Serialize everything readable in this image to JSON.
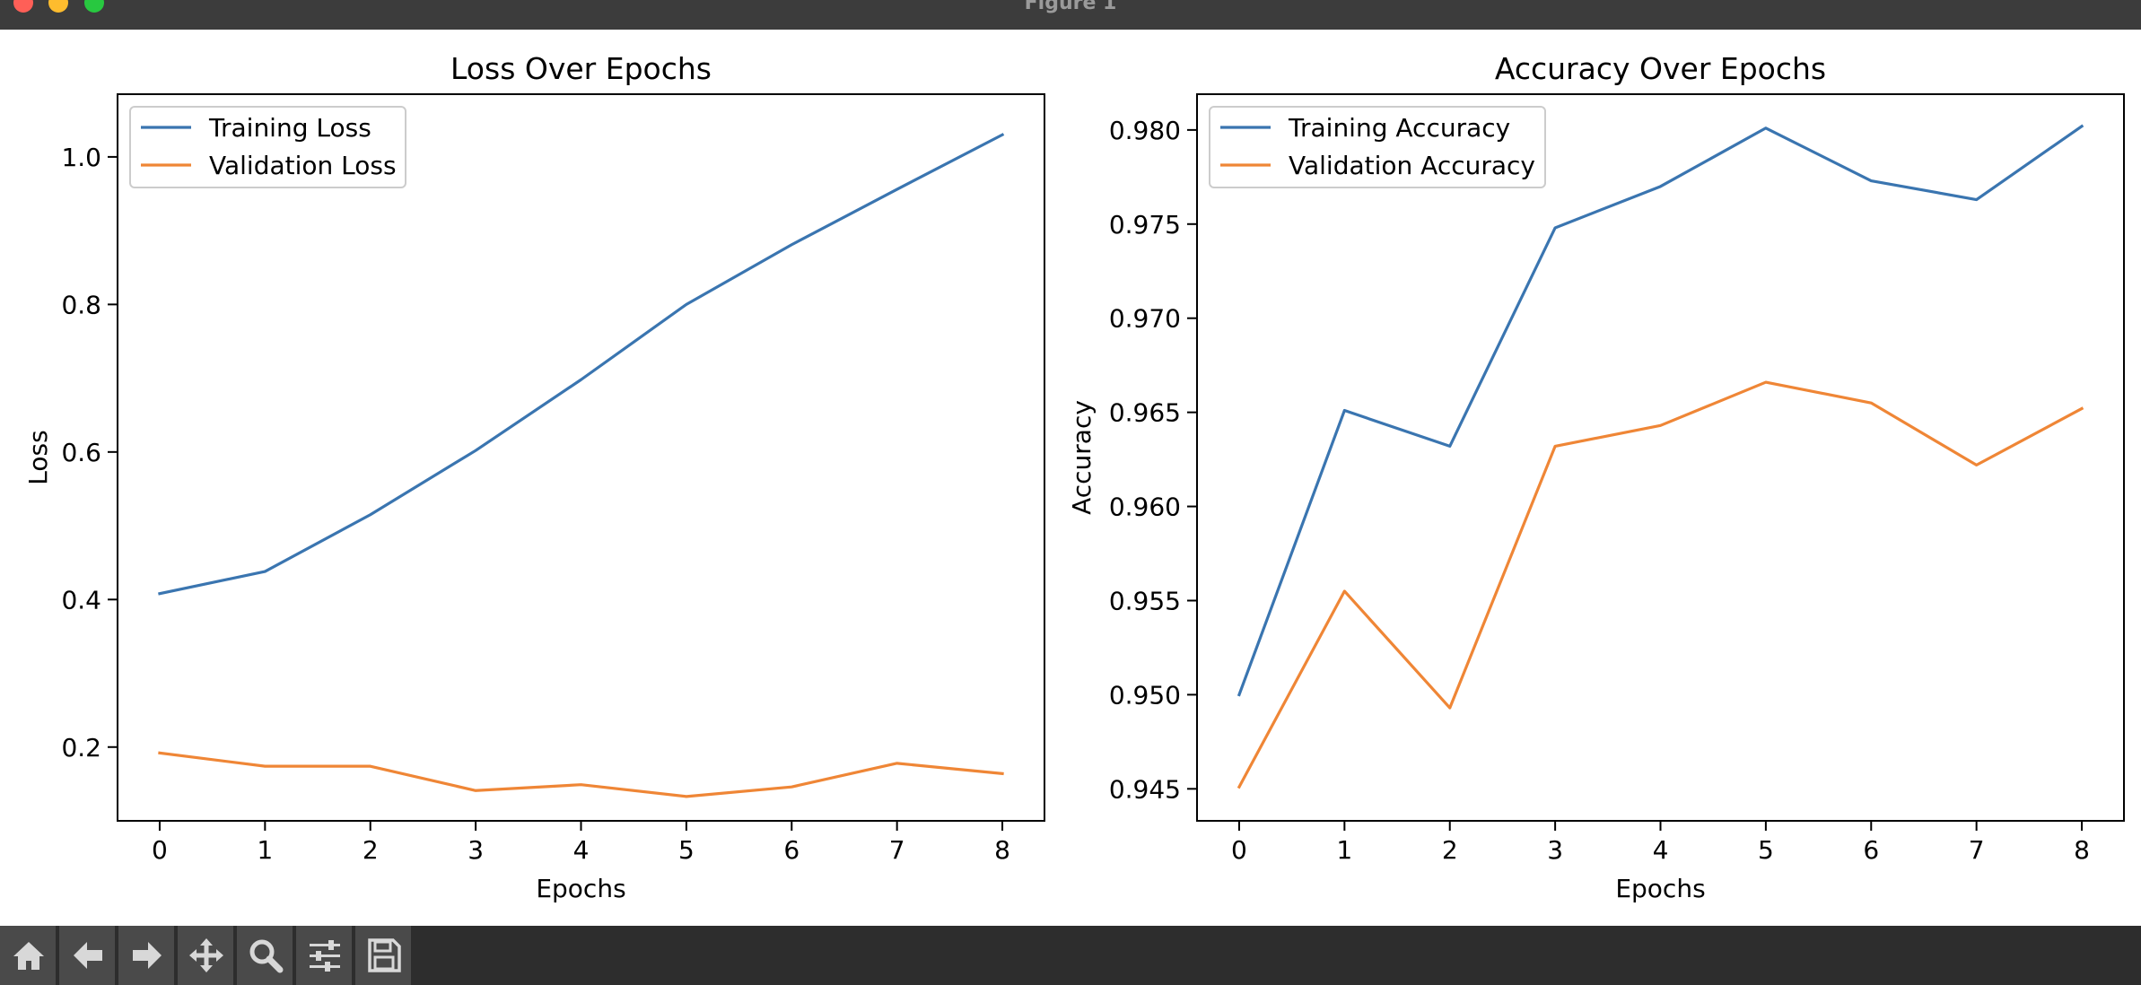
{
  "window": {
    "title": "Figure 1"
  },
  "toolbar": {
    "buttons": [
      {
        "icon": "home-icon"
      },
      {
        "icon": "arrow-left-icon"
      },
      {
        "icon": "arrow-right-icon"
      },
      {
        "icon": "move-icon"
      },
      {
        "icon": "zoom-icon"
      },
      {
        "icon": "configure-subplots-icon"
      },
      {
        "icon": "save-icon"
      }
    ]
  },
  "colors": {
    "series1": "#3a75b0",
    "series2": "#ef8636",
    "titlebar": "#3c3c3c",
    "toolbar": "#2d2d2d"
  },
  "chart_data": [
    {
      "type": "line",
      "title": "Loss Over Epochs",
      "xlabel": "Epochs",
      "ylabel": "Loss",
      "x": [
        0,
        1,
        2,
        3,
        4,
        5,
        6,
        7,
        8
      ],
      "xticks": [
        "0",
        "1",
        "2",
        "3",
        "4",
        "5",
        "6",
        "7",
        "8"
      ],
      "yticks": [
        "0.2",
        "0.4",
        "0.6",
        "0.8",
        "1.0"
      ],
      "ytick_values": [
        0.2,
        0.4,
        0.6,
        0.8,
        1.0
      ],
      "xlim": [
        -0.4,
        8.4
      ],
      "ylim": [
        0.1,
        1.085
      ],
      "legend_position": "top-left",
      "grid": false,
      "series": [
        {
          "name": "Training Loss",
          "values": [
            0.408,
            0.438,
            0.515,
            0.602,
            0.698,
            0.8,
            0.881,
            0.956,
            1.03
          ]
        },
        {
          "name": "Validation Loss",
          "values": [
            0.192,
            0.174,
            0.174,
            0.141,
            0.149,
            0.133,
            0.146,
            0.178,
            0.164
          ]
        }
      ]
    },
    {
      "type": "line",
      "title": "Accuracy Over Epochs",
      "xlabel": "Epochs",
      "ylabel": "Accuracy",
      "x": [
        0,
        1,
        2,
        3,
        4,
        5,
        6,
        7,
        8
      ],
      "xticks": [
        "0",
        "1",
        "2",
        "3",
        "4",
        "5",
        "6",
        "7",
        "8"
      ],
      "yticks": [
        "0.945",
        "0.950",
        "0.955",
        "0.960",
        "0.965",
        "0.970",
        "0.975",
        "0.980"
      ],
      "ytick_values": [
        0.945,
        0.95,
        0.955,
        0.96,
        0.965,
        0.97,
        0.975,
        0.98
      ],
      "xlim": [
        -0.4,
        8.4
      ],
      "ylim": [
        0.9433,
        0.9819
      ],
      "legend_position": "top-left",
      "grid": false,
      "series": [
        {
          "name": "Training Accuracy",
          "values": [
            0.95,
            0.9651,
            0.9632,
            0.9748,
            0.977,
            0.9801,
            0.9773,
            0.9763,
            0.9802
          ]
        },
        {
          "name": "Validation Accuracy",
          "values": [
            0.9451,
            0.9555,
            0.9493,
            0.9632,
            0.9643,
            0.9666,
            0.9655,
            0.9622,
            0.9652
          ]
        }
      ]
    }
  ]
}
